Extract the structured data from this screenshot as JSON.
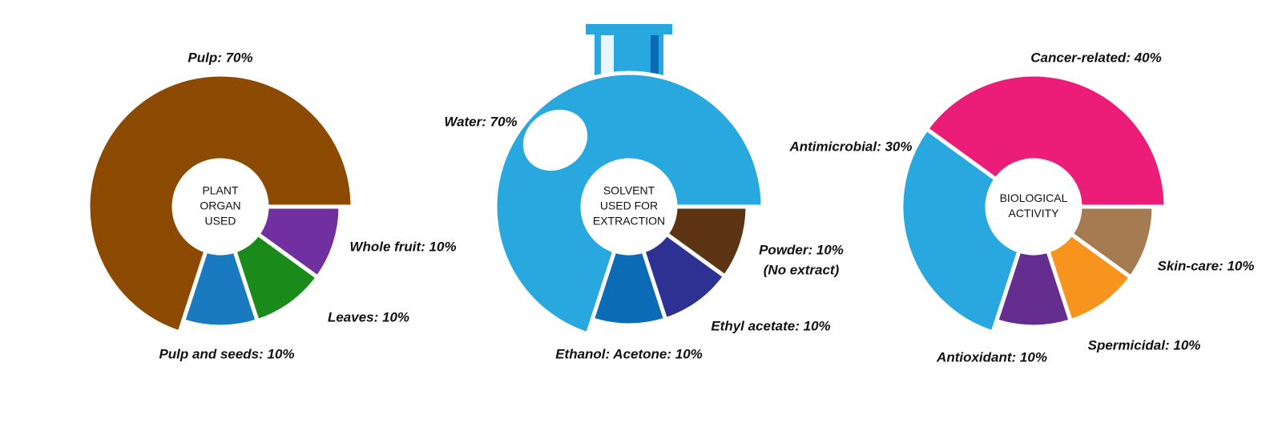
{
  "chart_data": [
    {
      "type": "pie",
      "center_label": [
        "PLANT",
        "ORGAN",
        "USED"
      ],
      "values": [
        70,
        10,
        10,
        10
      ],
      "value_labels": [
        "Pulp: 70%",
        "Pulp and seeds: 10%",
        "Leaves: 10%",
        "Whole fruit: 10%"
      ],
      "colors": [
        "#8b4a00",
        "#1a7ac0",
        "#1a8a1a",
        "#7030a0"
      ]
    },
    {
      "type": "pie",
      "center_label": [
        "SOLVENT",
        "USED FOR",
        "EXTRACTION"
      ],
      "values": [
        70,
        10,
        10,
        10
      ],
      "value_labels": [
        "Water: 70%",
        "Ethanol: Acetone: 10%",
        "Ethyl acetate: 10%",
        "Powder: 10%"
      ],
      "annotation": "(No extract)",
      "colors": [
        "#29a8e0",
        "#0b6cb5",
        "#2e3192",
        "#5c3414"
      ]
    },
    {
      "type": "pie",
      "center_label": [
        "BIOLOGICAL",
        "ACTIVITY"
      ],
      "values": [
        40,
        30,
        10,
        10,
        10
      ],
      "value_labels": [
        "Cancer-related: 40%",
        "Antimicrobial: 30%",
        "Antioxidant: 10%",
        "Spermicidal: 10%",
        "Skin-care: 10%"
      ],
      "colors": [
        "#ec1c79",
        "#29a8e0",
        "#662d91",
        "#f7941d",
        "#a57c52"
      ]
    }
  ]
}
